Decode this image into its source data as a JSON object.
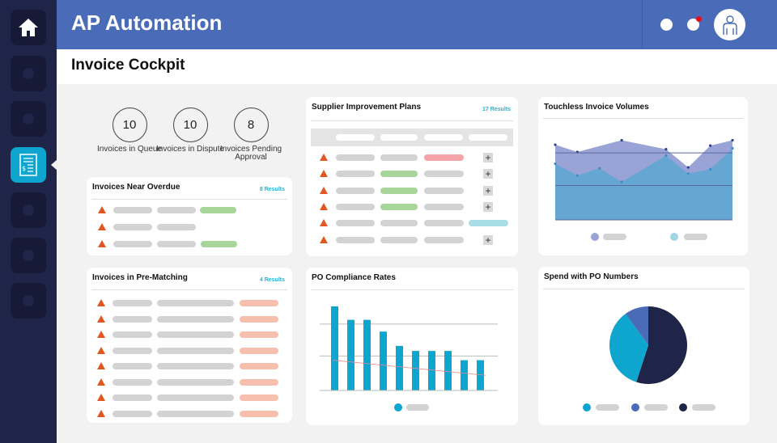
{
  "app": {
    "title": "AP Automation",
    "page_title": "Invoice Cockpit"
  },
  "sidebar": {
    "items": [
      {
        "icon": "home-icon"
      },
      {
        "icon": "circle-icon"
      },
      {
        "icon": "circle-icon"
      },
      {
        "icon": "invoice-icon",
        "active": true
      },
      {
        "icon": "circle-icon"
      },
      {
        "icon": "circle-icon"
      },
      {
        "icon": "circle-icon"
      }
    ]
  },
  "header": {
    "icons": [
      "circle-icon",
      "notification-icon",
      "user-avatar-icon"
    ],
    "notification_color": "#e3101b"
  },
  "kpis": [
    {
      "value": "10",
      "label": "Invoices in Queue"
    },
    {
      "value": "10",
      "label": "Invoices in Dispute"
    },
    {
      "value": "8",
      "label": "Invoices Pending Approval"
    }
  ],
  "near_overdue": {
    "title": "Invoices Near Overdue",
    "results": "8 Results"
  },
  "pre_matching": {
    "title": "Invoices in Pre-Matching",
    "results": "4 Results"
  },
  "supplier": {
    "title": "Supplier Improvement Plans",
    "results": "17 Results"
  },
  "po_compliance": {
    "title": "PO Compliance Rates"
  },
  "touchless": {
    "title": "Touchless Invoice Volumes"
  },
  "spend": {
    "title": "Spend with PO Numbers"
  },
  "colors": {
    "header": "#4a6cb8",
    "sidebar": "#1f2549",
    "accent": "#0ea5cf",
    "warning": "#e0571f",
    "green": "#a8d59a",
    "red": "#f4a3a8",
    "salmon": "#f7bfae"
  },
  "chart_data": [
    {
      "type": "area",
      "title": "Touchless Invoice Volumes",
      "grid": true,
      "series": [
        {
          "color": "#9aa3d6",
          "x": [
            0,
            1,
            3,
            5,
            6,
            7,
            8
          ],
          "values": [
            83,
            75,
            88,
            78,
            58,
            82,
            88
          ]
        },
        {
          "color": "#66a6d2",
          "x": [
            0,
            1,
            2,
            3,
            5,
            6,
            7,
            8
          ],
          "values": [
            62,
            49,
            57,
            42,
            71,
            51,
            56,
            79
          ]
        }
      ],
      "gridlines": [
        74,
        38
      ],
      "ylim": [
        0,
        100
      ]
    },
    {
      "type": "bar",
      "title": "PO Compliance Rates",
      "color": "#0ea5cf",
      "values": [
        100,
        84,
        84,
        70,
        53,
        47,
        47,
        47,
        36,
        36
      ],
      "trend": [
        36,
        18
      ],
      "gridlines": [
        79,
        41
      ],
      "ylim": [
        0,
        100
      ]
    },
    {
      "type": "pie",
      "title": "Spend with PO Numbers",
      "slices": [
        {
          "value": 55,
          "color": "#1f2549"
        },
        {
          "value": 35,
          "color": "#0ea5cf"
        },
        {
          "value": 10,
          "color": "#4a6cb8"
        }
      ]
    }
  ]
}
